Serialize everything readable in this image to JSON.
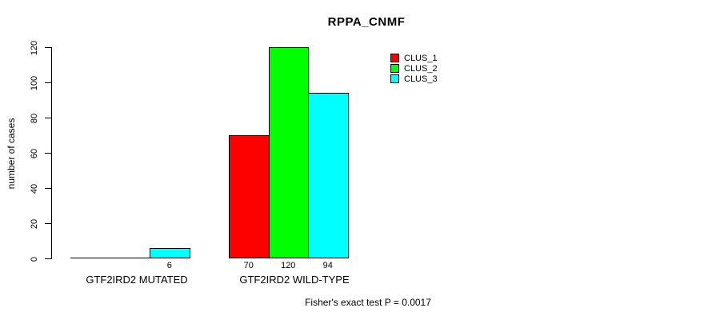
{
  "window": {
    "background": "#ffffff",
    "axis_color": "#000000",
    "text_color": "#000000"
  },
  "chart": {
    "title": "RPPA_CNMF",
    "ylabel": "number of cases",
    "footer": "Fisher's exact test P = 0.0017"
  },
  "chart_data": {
    "type": "bar",
    "title": "RPPA_CNMF",
    "xlabel": "",
    "ylabel": "number of cases",
    "categories": [
      "GTF2IRD2 MUTATED",
      "GTF2IRD2 WILD-TYPE"
    ],
    "series": [
      {
        "name": "CLUS_1",
        "color": "#ff0000",
        "values": [
          0,
          70
        ]
      },
      {
        "name": "CLUS_2",
        "color": "#00ff00",
        "values": [
          0,
          120
        ]
      },
      {
        "name": "CLUS_3",
        "color": "#00ffff",
        "values": [
          6,
          94
        ]
      }
    ],
    "value_labels": [
      [
        "",
        "",
        "6"
      ],
      [
        "70",
        "120",
        "94"
      ]
    ],
    "yticks": [
      0,
      20,
      40,
      60,
      80,
      100,
      120
    ],
    "ylim": [
      0,
      120
    ],
    "grid": false,
    "legend_position": "top-right",
    "legend_entries": [
      {
        "label": "CLUS_1",
        "color": "#ff0000"
      },
      {
        "label": "CLUS_2",
        "color": "#00ff00"
      },
      {
        "label": "CLUS_3",
        "color": "#00ffff"
      }
    ],
    "annotation": "Fisher's exact test P = 0.0017"
  }
}
